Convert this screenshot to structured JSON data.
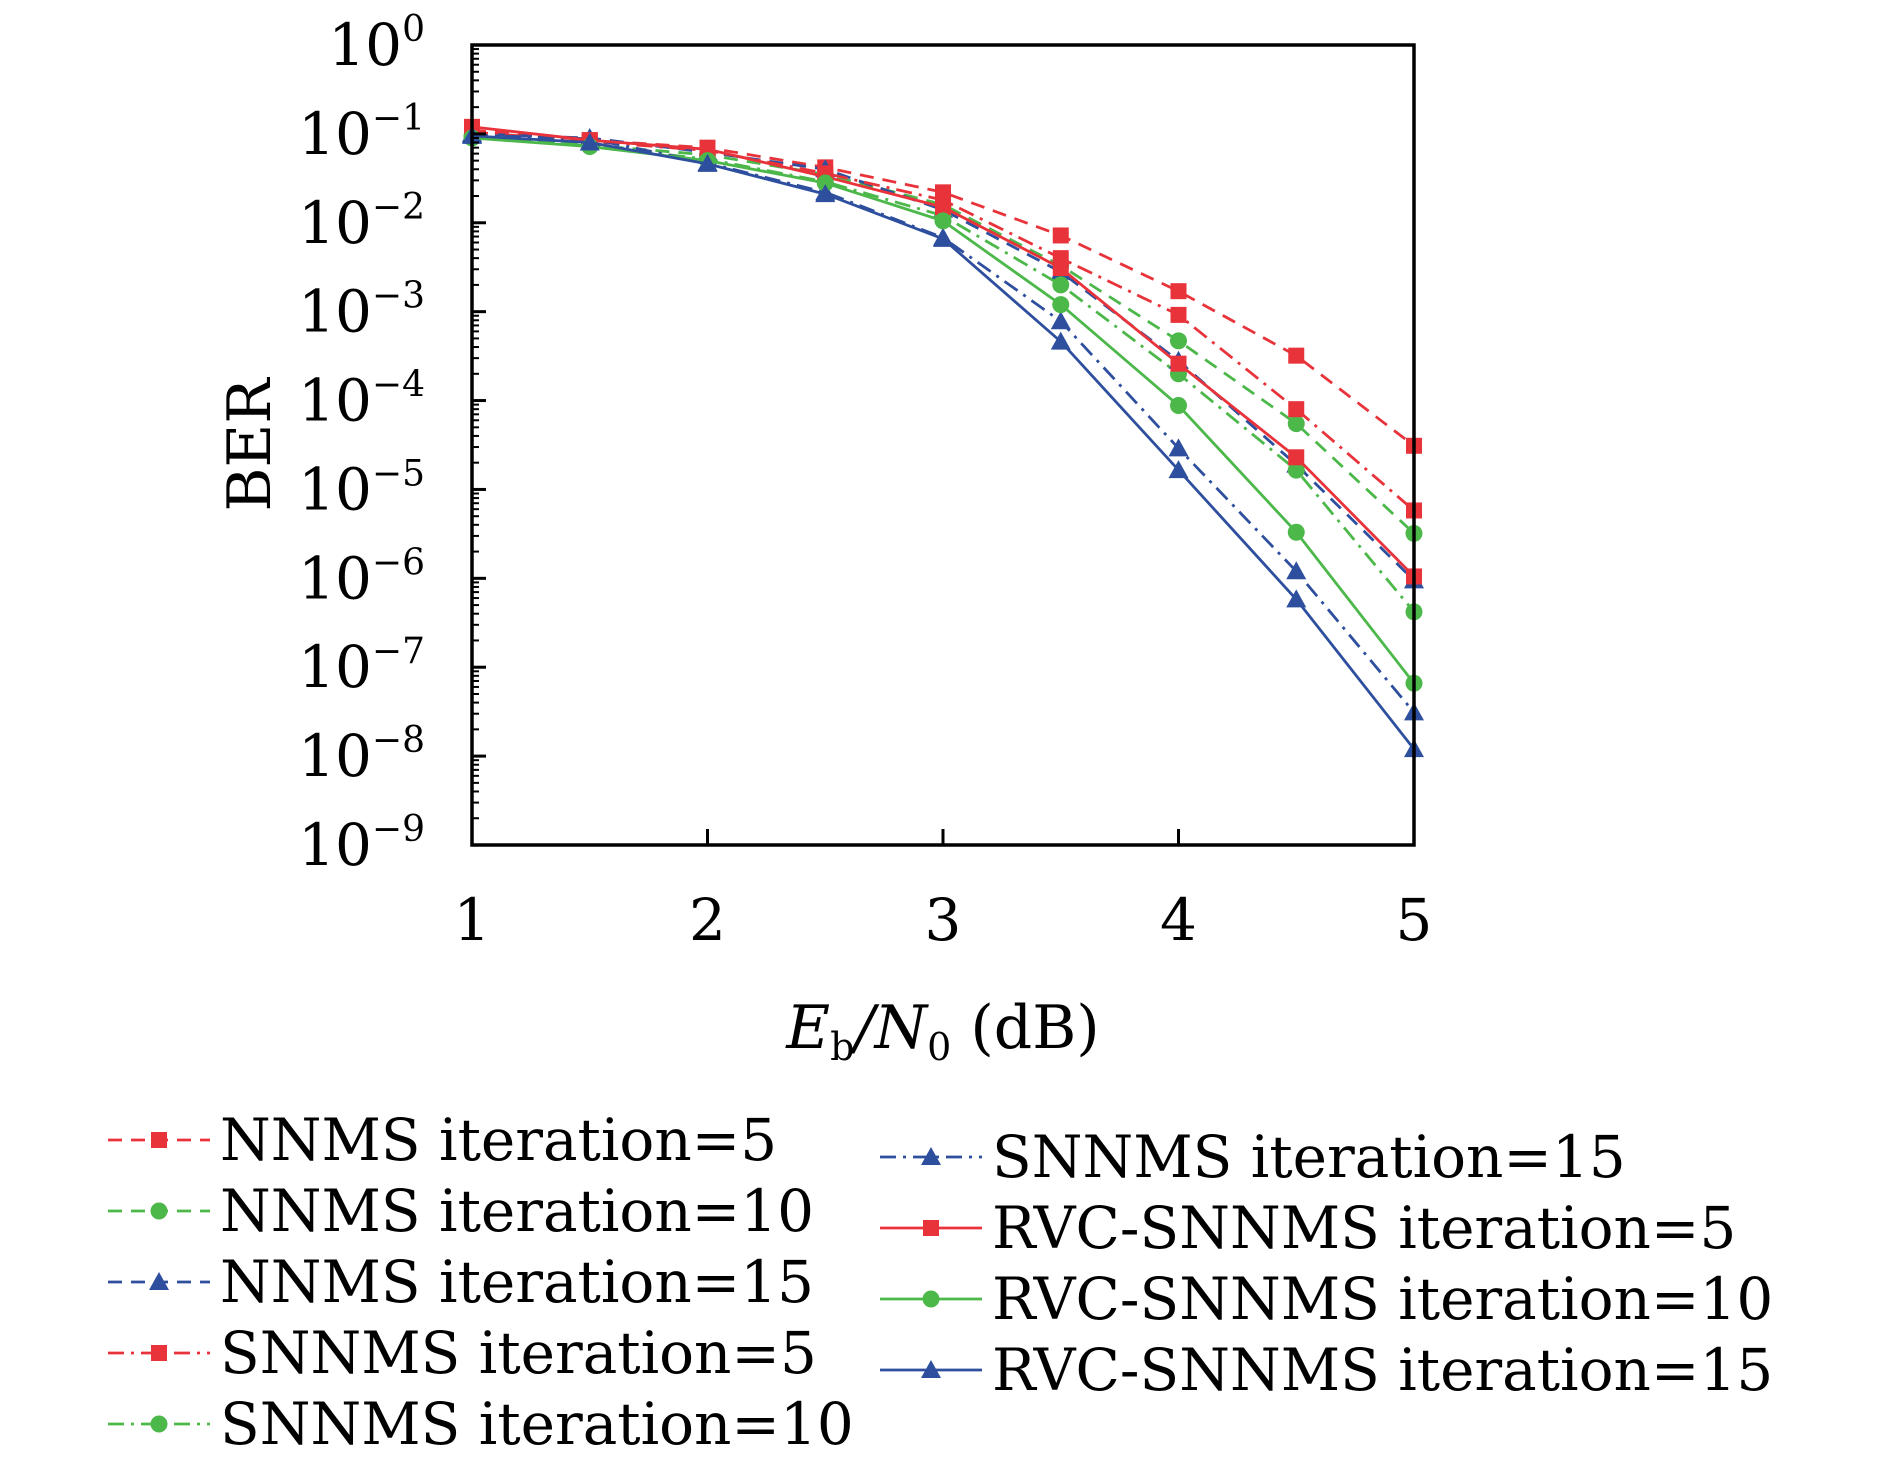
{
  "chart_data": {
    "type": "line",
    "title": "",
    "xlabel": {
      "main": "E",
      "sub1": "b",
      "slash": "/N",
      "sub2": "0",
      "unit": " (dB)"
    },
    "ylabel": "BER",
    "x": [
      1,
      1.5,
      2,
      2.5,
      3,
      3.5,
      4,
      4.5,
      5
    ],
    "xlim": [
      1,
      5
    ],
    "ylim": [
      1e-09,
      1
    ],
    "yscale": "log",
    "xticks": [
      "1",
      "2",
      "3",
      "4",
      "5"
    ],
    "xtick_values": [
      1,
      2,
      3,
      4,
      5
    ],
    "ytick_base": "10",
    "ytick_exponents": [
      "0",
      "−1",
      "−2",
      "−3",
      "−4",
      "−5",
      "−6",
      "−7",
      "−8",
      "−9"
    ],
    "ytick_values": [
      0,
      -1,
      -2,
      -3,
      -4,
      -5,
      -6,
      -7,
      -8,
      -9
    ],
    "grid": false,
    "legend_position": "bottom",
    "colors": {
      "red": "#e8333b",
      "green": "#4cb84a",
      "blue": "#2e4f9e",
      "axis": "#000000"
    },
    "series": [
      {
        "name": "NNMS iteration=5",
        "color": "#e8333b",
        "marker": "square",
        "dash": "dashed",
        "values": [
          0.11,
          0.085,
          0.07,
          0.042,
          0.022,
          0.0072,
          0.0017,
          0.00032,
          3.1e-05
        ]
      },
      {
        "name": "NNMS iteration=10",
        "color": "#4cb84a",
        "marker": "circle",
        "dash": "dashed",
        "values": [
          0.095,
          0.075,
          0.058,
          0.035,
          0.016,
          0.0033,
          0.00047,
          5.5e-05,
          3.2e-06
        ]
      },
      {
        "name": "NNMS iteration=15",
        "color": "#2e4f9e",
        "marker": "triangle",
        "dash": "dashed",
        "values": [
          0.1,
          0.09,
          0.062,
          0.04,
          0.014,
          0.0028,
          0.00028,
          1.9e-05,
          9.5e-07
        ]
      },
      {
        "name": "SNNMS iteration=5",
        "color": "#e8333b",
        "marker": "square",
        "dash": "dashdot",
        "values": [
          0.105,
          0.082,
          0.065,
          0.036,
          0.018,
          0.004,
          0.00092,
          8e-05,
          5.8e-06
        ]
      },
      {
        "name": "SNNMS iteration=10",
        "color": "#4cb84a",
        "marker": "circle",
        "dash": "dashdot",
        "values": [
          0.093,
          0.073,
          0.052,
          0.029,
          0.012,
          0.002,
          0.0002,
          1.65e-05,
          4.2e-07
        ]
      },
      {
        "name": "SNNMS iteration=15",
        "color": "#2e4f9e",
        "marker": "triangle",
        "dash": "dashdot",
        "values": [
          0.097,
          0.088,
          0.047,
          0.022,
          0.0068,
          0.00078,
          2.9e-05,
          1.2e-06,
          3.1e-08
        ]
      },
      {
        "name": "RVC-SNNMS iteration=5",
        "color": "#e8333b",
        "marker": "square",
        "dash": "solid",
        "values": [
          0.12,
          0.085,
          0.067,
          0.033,
          0.015,
          0.0031,
          0.00026,
          2.3e-05,
          1.05e-06
        ]
      },
      {
        "name": "RVC-SNNMS iteration=10",
        "color": "#4cb84a",
        "marker": "circle",
        "dash": "solid",
        "values": [
          0.09,
          0.072,
          0.05,
          0.028,
          0.0105,
          0.0012,
          8.8e-05,
          3.3e-06,
          6.6e-08
        ]
      },
      {
        "name": "RVC-SNNMS iteration=15",
        "color": "#2e4f9e",
        "marker": "triangle",
        "dash": "solid",
        "values": [
          0.095,
          0.08,
          0.046,
          0.021,
          0.0066,
          0.00046,
          1.65e-05,
          5.8e-07,
          1.2e-08
        ]
      }
    ]
  }
}
